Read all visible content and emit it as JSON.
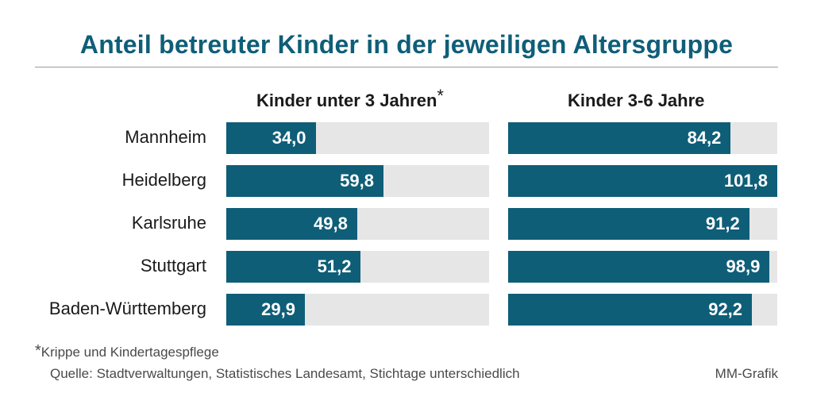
{
  "title": "Anteil betreuter Kinder in der jeweiligen Altersgruppe",
  "footnote": "Krippe und Kindertagespflege",
  "footnote_marker": "*",
  "source": "Quelle: Stadtverwaltungen, Statistisches Landesamt, Stichtage unterschiedlich",
  "credit": "MM-Grafik",
  "colors": {
    "bar": "#0f5e78",
    "track": "#e7e6e6",
    "title": "#0f5e78"
  },
  "chart_data": {
    "type": "bar",
    "orientation": "horizontal",
    "categories": [
      "Mannheim",
      "Heidelberg",
      "Karlsruhe",
      "Stuttgart",
      "Baden-Württemberg"
    ],
    "series": [
      {
        "name": "Kinder unter 3 Jahren",
        "marker": "*",
        "values": [
          34.0,
          59.8,
          49.8,
          51.2,
          29.9
        ],
        "labels": [
          "34,0",
          "59,8",
          "49,8",
          "51,2",
          "29,9"
        ],
        "xlim": [
          0,
          100
        ]
      },
      {
        "name": "Kinder 3-6 Jahre",
        "marker": "",
        "values": [
          84.2,
          101.8,
          91.2,
          98.9,
          92.2
        ],
        "labels": [
          "84,2",
          "101,8",
          "91,2",
          "98,9",
          "92,2"
        ],
        "xlim": [
          0,
          101.8
        ]
      }
    ]
  }
}
